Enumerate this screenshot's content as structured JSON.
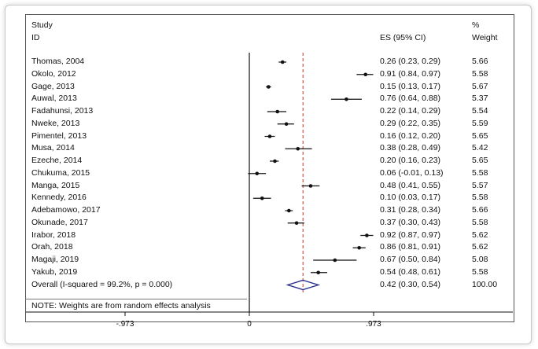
{
  "headers": {
    "study": "Study",
    "id": "ID",
    "es": "ES (95% CI)",
    "percent": "%",
    "weight": "Weight"
  },
  "note": "NOTE: Weights are from random effects analysis",
  "chart_data": {
    "type": "forest",
    "x_ticks": [
      {
        "value": -0.973,
        "label": "-.973"
      },
      {
        "value": 0,
        "label": "0"
      },
      {
        "value": 0.973,
        "label": ".973"
      }
    ],
    "xlim": [
      -0.973,
      0.973
    ],
    "null_line": 0,
    "overall_line": 0.42,
    "studies": [
      {
        "id": "Thomas, 2004",
        "es": 0.26,
        "lo": 0.23,
        "hi": 0.29,
        "ci_text": "0.26 (0.23, 0.29)",
        "weight": "5.66"
      },
      {
        "id": "Okolo, 2012",
        "es": 0.91,
        "lo": 0.84,
        "hi": 0.97,
        "ci_text": "0.91 (0.84, 0.97)",
        "weight": "5.58"
      },
      {
        "id": "Gage, 2013",
        "es": 0.15,
        "lo": 0.13,
        "hi": 0.17,
        "ci_text": "0.15 (0.13, 0.17)",
        "weight": "5.67"
      },
      {
        "id": "Auwal, 2013",
        "es": 0.76,
        "lo": 0.64,
        "hi": 0.88,
        "ci_text": "0.76 (0.64, 0.88)",
        "weight": "5.37"
      },
      {
        "id": "Fadahunsi, 2013",
        "es": 0.22,
        "lo": 0.14,
        "hi": 0.29,
        "ci_text": "0.22 (0.14, 0.29)",
        "weight": "5.54"
      },
      {
        "id": "Nweke, 2013",
        "es": 0.29,
        "lo": 0.22,
        "hi": 0.35,
        "ci_text": "0.29 (0.22, 0.35)",
        "weight": "5.59"
      },
      {
        "id": "Pimentel, 2013",
        "es": 0.16,
        "lo": 0.12,
        "hi": 0.2,
        "ci_text": "0.16 (0.12, 0.20)",
        "weight": "5.65"
      },
      {
        "id": "Musa, 2014",
        "es": 0.38,
        "lo": 0.28,
        "hi": 0.49,
        "ci_text": "0.38 (0.28, 0.49)",
        "weight": "5.42"
      },
      {
        "id": "Ezeche, 2014",
        "es": 0.2,
        "lo": 0.16,
        "hi": 0.23,
        "ci_text": "0.20 (0.16, 0.23)",
        "weight": "5.65"
      },
      {
        "id": "Chukuma, 2015",
        "es": 0.06,
        "lo": -0.01,
        "hi": 0.13,
        "ci_text": "0.06 (-0.01, 0.13)",
        "weight": "5.58"
      },
      {
        "id": "Manga, 2015",
        "es": 0.48,
        "lo": 0.41,
        "hi": 0.55,
        "ci_text": "0.48 (0.41, 0.55)",
        "weight": "5.57"
      },
      {
        "id": "Kennedy, 2016",
        "es": 0.1,
        "lo": 0.03,
        "hi": 0.17,
        "ci_text": "0.10 (0.03, 0.17)",
        "weight": "5.58"
      },
      {
        "id": "Adebamowo, 2017",
        "es": 0.31,
        "lo": 0.28,
        "hi": 0.34,
        "ci_text": "0.31 (0.28, 0.34)",
        "weight": "5.66"
      },
      {
        "id": "Okunade, 2017",
        "es": 0.37,
        "lo": 0.3,
        "hi": 0.43,
        "ci_text": "0.37 (0.30, 0.43)",
        "weight": "5.58"
      },
      {
        "id": "Irabor, 2018",
        "es": 0.92,
        "lo": 0.87,
        "hi": 0.97,
        "ci_text": "0.92 (0.87, 0.97)",
        "weight": "5.62"
      },
      {
        "id": "Orah, 2018",
        "es": 0.86,
        "lo": 0.81,
        "hi": 0.91,
        "ci_text": "0.86 (0.81, 0.91)",
        "weight": "5.62"
      },
      {
        "id": "Magaji, 2019",
        "es": 0.67,
        "lo": 0.5,
        "hi": 0.84,
        "ci_text": "0.67 (0.50, 0.84)",
        "weight": "5.08"
      },
      {
        "id": "Yakub, 2019",
        "es": 0.54,
        "lo": 0.48,
        "hi": 0.61,
        "ci_text": "0.54 (0.48, 0.61)",
        "weight": "5.58"
      }
    ],
    "overall": {
      "id": "Overall  (I-squared = 99.2%, p = 0.000)",
      "es": 0.42,
      "lo": 0.3,
      "hi": 0.54,
      "ci_text": "0.42 (0.30, 0.54)",
      "weight": "100.00"
    },
    "colors": {
      "diamond": "#2b2f8f",
      "null_line": "#111111",
      "overall_line": "#c0392b",
      "marks": "#111111"
    }
  }
}
